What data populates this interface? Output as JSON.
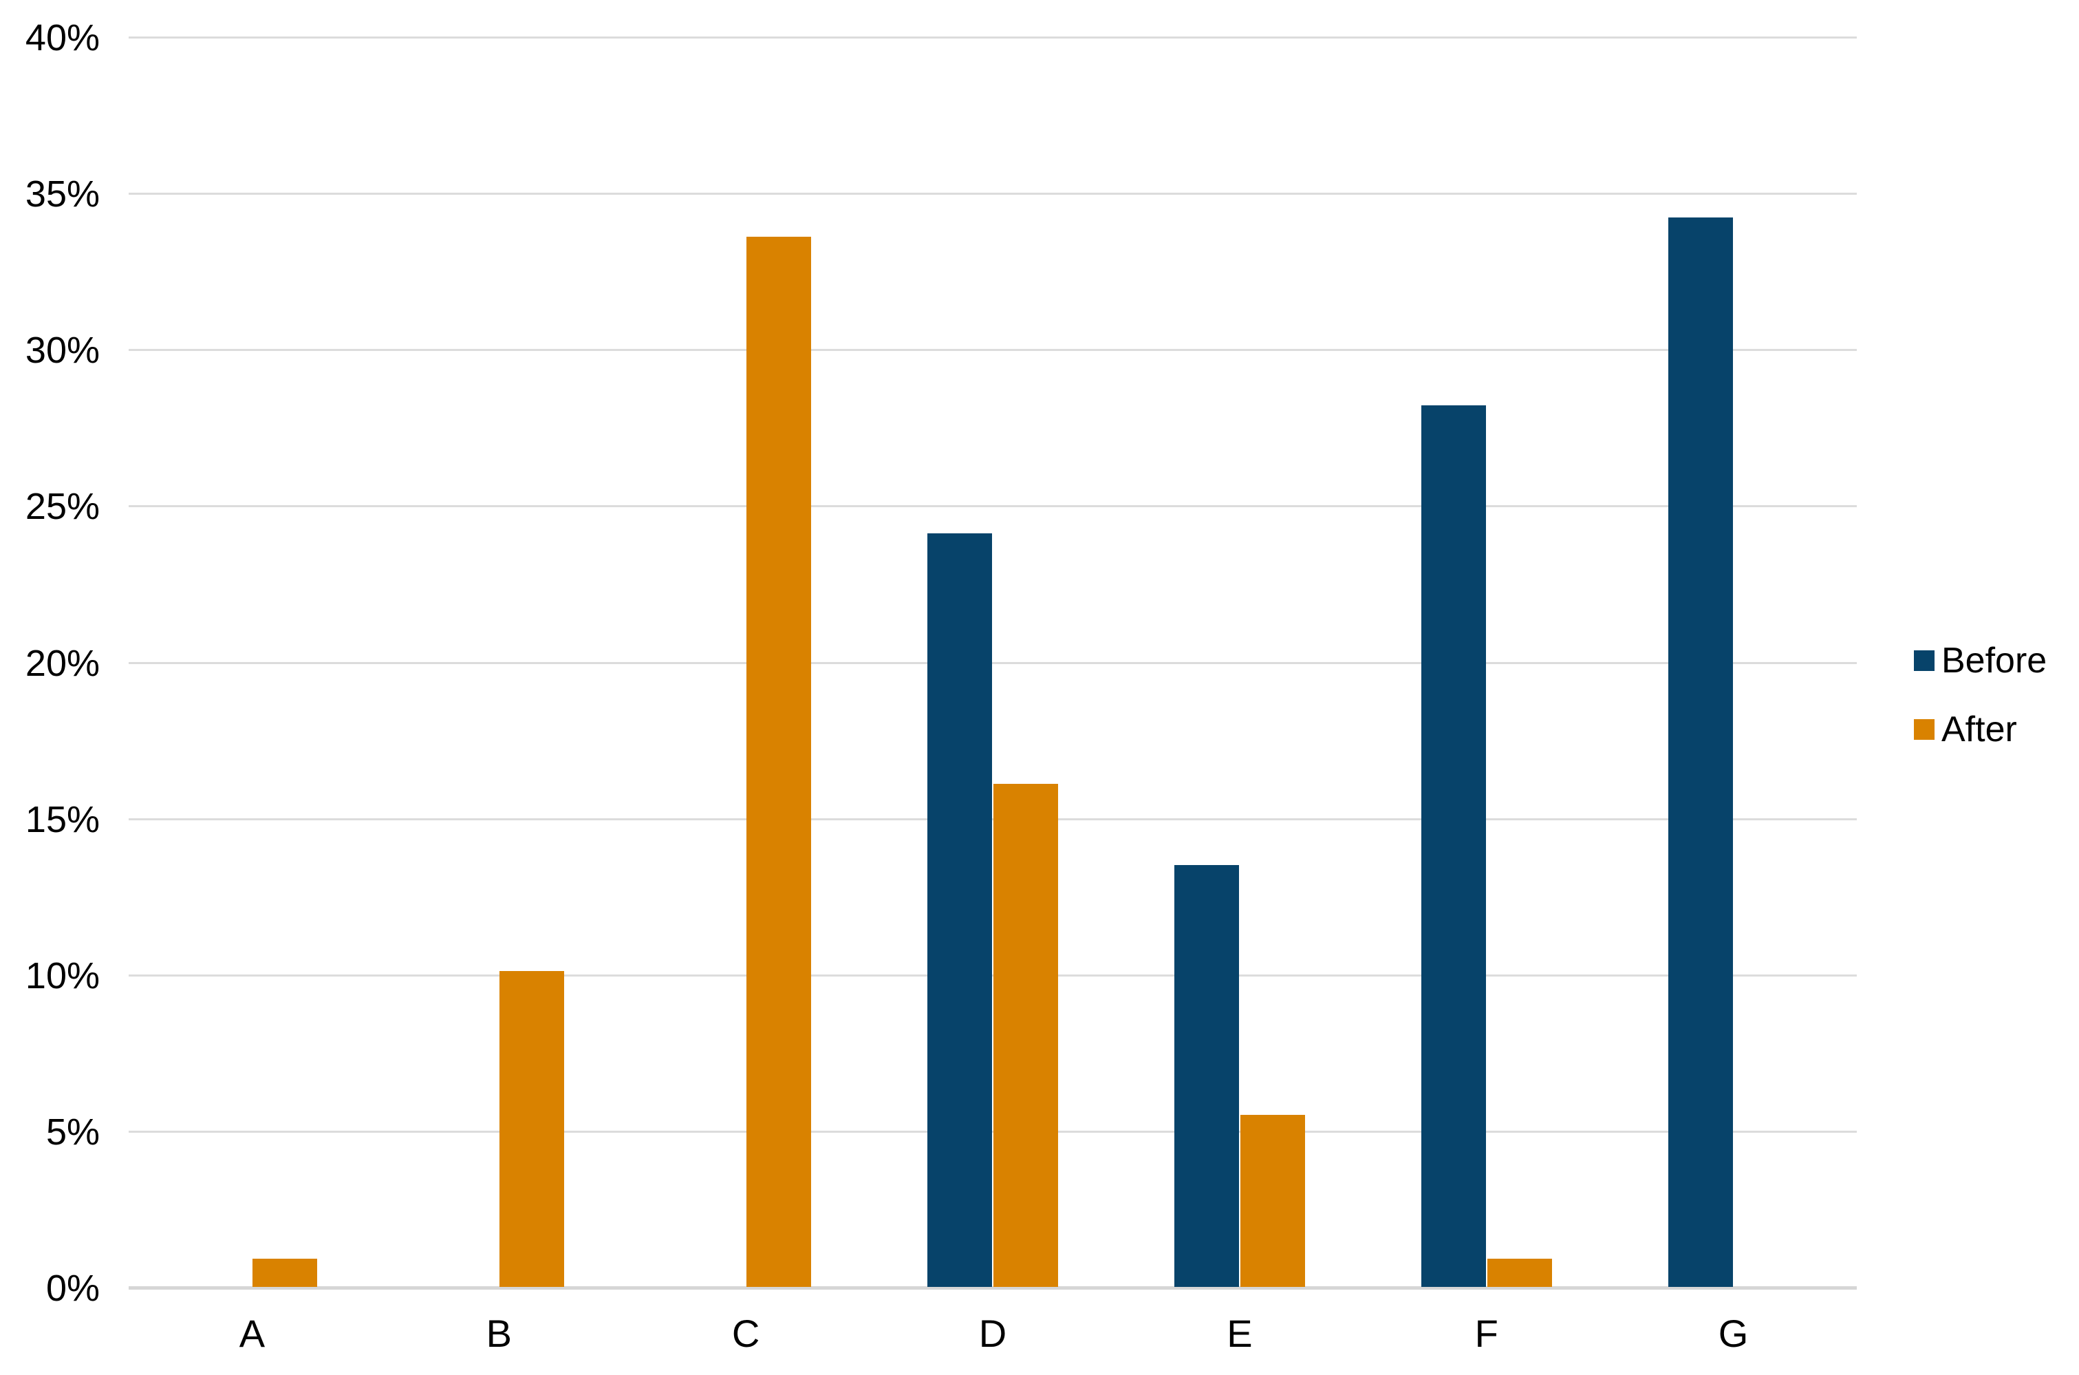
{
  "chart_data": {
    "type": "bar",
    "title": "",
    "xlabel": "",
    "ylabel": "",
    "categories": [
      "A",
      "B",
      "C",
      "D",
      "E",
      "F",
      "G"
    ],
    "series": [
      {
        "name": "Before",
        "color": "#07436A",
        "values": [
          0,
          0,
          0,
          24.1,
          13.5,
          28.2,
          34.2
        ]
      },
      {
        "name": "After",
        "color": "#D98200",
        "values": [
          0.9,
          10.1,
          33.6,
          16.1,
          5.5,
          0.9,
          0
        ]
      }
    ],
    "ylim": [
      0,
      40
    ],
    "yticks": [
      0,
      5,
      10,
      15,
      20,
      25,
      30,
      35,
      40
    ],
    "ytick_labels": [
      "0%",
      "5%",
      "10%",
      "15%",
      "20%",
      "25%",
      "30%",
      "35%",
      "40%"
    ],
    "grid": true,
    "gridline_color": "#DCDCDC",
    "axis_line_color": "#D6D6D6",
    "legend_position": "right"
  },
  "legend": {
    "items": [
      {
        "label": "Before"
      },
      {
        "label": "After"
      }
    ]
  }
}
